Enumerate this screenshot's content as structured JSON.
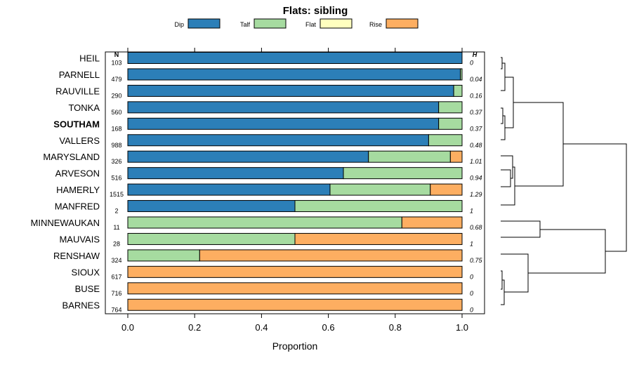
{
  "chart_data": {
    "type": "bar",
    "orientation": "horizontal",
    "stacked": true,
    "title": "Flats: sibling",
    "xlabel": "Proportion",
    "ylabel": "",
    "xlim": [
      0,
      1
    ],
    "x_ticks": [
      "0.0",
      "0.2",
      "0.4",
      "0.6",
      "0.8",
      "1.0"
    ],
    "legend_position": "top",
    "n_header": "N",
    "h_header": "H",
    "highlighted_category": "SOUTHAM",
    "series": [
      {
        "name": "Dip",
        "color": "#2c7fb8"
      },
      {
        "name": "Talf",
        "color": "#a6dba0"
      },
      {
        "name": "Flat",
        "color": "#ffffbf"
      },
      {
        "name": "Rise",
        "color": "#fdae61"
      }
    ],
    "rows": [
      {
        "label": "HEIL",
        "n": "103",
        "h": "0",
        "values": [
          1.0,
          0,
          0,
          0
        ]
      },
      {
        "label": "PARNELL",
        "n": "479",
        "h": "0.04",
        "values": [
          0.995,
          0.005,
          0,
          0
        ]
      },
      {
        "label": "RAUVILLE",
        "n": "290",
        "h": "0.16",
        "values": [
          0.975,
          0.025,
          0,
          0
        ]
      },
      {
        "label": "TONKA",
        "n": "560",
        "h": "0.37",
        "values": [
          0.93,
          0.07,
          0,
          0
        ]
      },
      {
        "label": "SOUTHAM",
        "n": "168",
        "h": "0.37",
        "values": [
          0.93,
          0.07,
          0,
          0
        ]
      },
      {
        "label": "VALLERS",
        "n": "988",
        "h": "0.48",
        "values": [
          0.9,
          0.1,
          0,
          0
        ]
      },
      {
        "label": "MARYSLAND",
        "n": "326",
        "h": "1.01",
        "values": [
          0.72,
          0.245,
          0,
          0.035
        ]
      },
      {
        "label": "ARVESON",
        "n": "516",
        "h": "0.94",
        "values": [
          0.645,
          0.355,
          0,
          0
        ]
      },
      {
        "label": "HAMERLY",
        "n": "1515",
        "h": "1.29",
        "values": [
          0.605,
          0.3,
          0,
          0.095
        ]
      },
      {
        "label": "MANFRED",
        "n": "2",
        "h": "1",
        "values": [
          0.5,
          0.5,
          0,
          0
        ]
      },
      {
        "label": "MINNEWAUKAN",
        "n": "11",
        "h": "0.68",
        "values": [
          0,
          0.82,
          0,
          0.18
        ]
      },
      {
        "label": "MAUVAIS",
        "n": "28",
        "h": "1",
        "values": [
          0,
          0.5,
          0,
          0.5
        ]
      },
      {
        "label": "RENSHAW",
        "n": "324",
        "h": "0.75",
        "values": [
          0,
          0.215,
          0,
          0.785
        ]
      },
      {
        "label": "SIOUX",
        "n": "617",
        "h": "0",
        "values": [
          0,
          0,
          0,
          1.0
        ]
      },
      {
        "label": "BUSE",
        "n": "716",
        "h": "0",
        "values": [
          0,
          0,
          0,
          1.0
        ]
      },
      {
        "label": "BARNES",
        "n": "764",
        "h": "0",
        "values": [
          0,
          0,
          0,
          1.0
        ]
      }
    ]
  }
}
